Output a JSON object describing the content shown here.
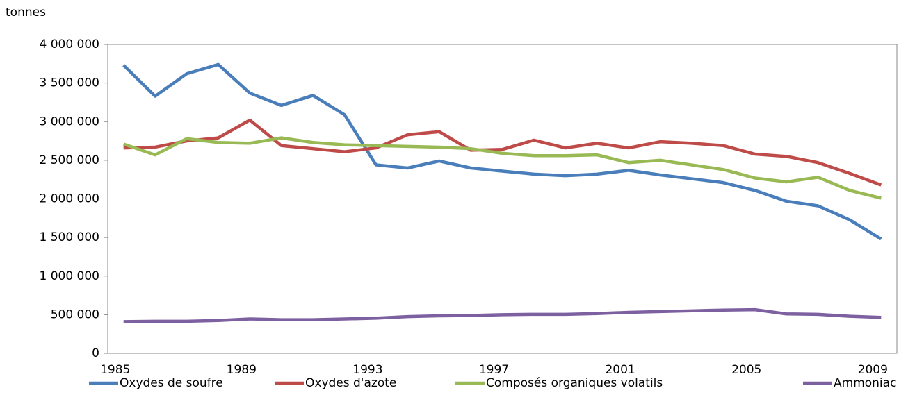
{
  "chart_data": {
    "type": "line",
    "y_label": "tonnes",
    "categories": [
      "1985",
      null,
      null,
      null,
      "1989",
      null,
      null,
      null,
      "1993",
      null,
      null,
      null,
      "1997",
      null,
      null,
      null,
      "2001",
      null,
      null,
      null,
      "2005",
      null,
      null,
      null,
      "2009"
    ],
    "series": [
      {
        "name": "Oxydes de soufre",
        "color": "#4a7ebb",
        "values": [
          3730000,
          3330000,
          3620000,
          3740000,
          3370000,
          3210000,
          3340000,
          3090000,
          2440000,
          2400000,
          2490000,
          2400000,
          2360000,
          2320000,
          2300000,
          2320000,
          2370000,
          2310000,
          2260000,
          2210000,
          2110000,
          1970000,
          1910000,
          1730000,
          1480000
        ]
      },
      {
        "name": "Oxydes d'azote",
        "color": "#be4b48",
        "values": [
          2660000,
          2670000,
          2750000,
          2790000,
          3020000,
          2690000,
          2650000,
          2610000,
          2660000,
          2830000,
          2870000,
          2630000,
          2640000,
          2760000,
          2660000,
          2720000,
          2660000,
          2740000,
          2720000,
          2690000,
          2580000,
          2550000,
          2470000,
          2330000,
          2180000
        ]
      },
      {
        "name": "Composés organiques volatils",
        "color": "#98b954",
        "values": [
          2710000,
          2570000,
          2780000,
          2730000,
          2720000,
          2790000,
          2730000,
          2700000,
          2690000,
          2680000,
          2670000,
          2650000,
          2590000,
          2560000,
          2560000,
          2570000,
          2470000,
          2500000,
          2440000,
          2380000,
          2270000,
          2220000,
          2280000,
          2110000,
          2010000
        ]
      },
      {
        "name": "Ammoniac",
        "color": "#7d60a0",
        "values": [
          410000,
          415000,
          415000,
          425000,
          445000,
          435000,
          435000,
          445000,
          455000,
          475000,
          485000,
          490000,
          500000,
          505000,
          505000,
          515000,
          530000,
          540000,
          550000,
          560000,
          565000,
          510000,
          505000,
          480000,
          465000
        ]
      }
    ],
    "ylim": [
      0,
      4000000
    ],
    "yticks": [
      0,
      {
        "value": 500000,
        "label": "500 000"
      },
      {
        "value": 1000000,
        "label": "1 000 000"
      },
      {
        "value": 1500000,
        "label": "1 500 000"
      },
      {
        "value": 2000000,
        "label": "2 000 000"
      },
      {
        "value": 2500000,
        "label": "2 500 000"
      },
      {
        "value": 3000000,
        "label": "3 000 000"
      },
      {
        "value": 3500000,
        "label": "3 500 000"
      },
      {
        "value": 4000000,
        "label": "4 000 000"
      }
    ],
    "grid": false,
    "legend": "bottom"
  }
}
